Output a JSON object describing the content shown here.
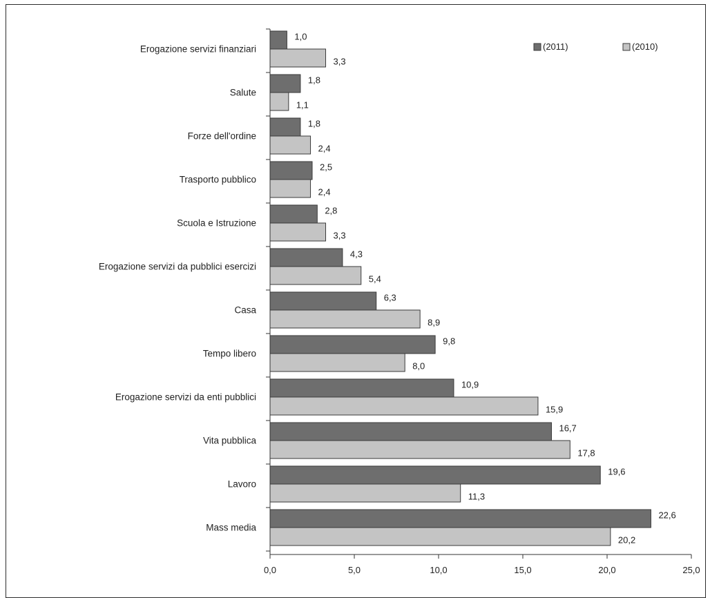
{
  "chart_data": {
    "type": "bar",
    "orientation": "horizontal",
    "categories": [
      "Erogazione servizi finanziari",
      "Salute",
      "Forze dell'ordine",
      "Trasporto pubblico",
      "Scuola e Istruzione",
      "Erogazione servizi da pubblici esercizi",
      "Casa",
      "Tempo libero",
      "Erogazione servizi da enti pubblici",
      "Vita pubblica",
      "Lavoro",
      "Mass media"
    ],
    "series": [
      {
        "name": "(2011)",
        "color": "#6e6e6e",
        "values": [
          1.0,
          1.8,
          1.8,
          2.5,
          2.8,
          4.3,
          6.3,
          9.8,
          10.9,
          16.7,
          19.6,
          22.6
        ],
        "labels": [
          "1,0",
          "1,8",
          "1,8",
          "2,5",
          "2,8",
          "4,3",
          "6,3",
          "9,8",
          "10,9",
          "16,7",
          "19,6",
          "22,6"
        ]
      },
      {
        "name": "(2010)",
        "color": "#c4c4c4",
        "values": [
          3.3,
          1.1,
          2.4,
          2.4,
          3.3,
          5.4,
          8.9,
          8.0,
          15.9,
          17.8,
          11.3,
          20.2
        ],
        "labels": [
          "3,3",
          "1,1",
          "2,4",
          "2,4",
          "3,3",
          "5,4",
          "8,9",
          "8,0",
          "15,9",
          "17,8",
          "11,3",
          "20,2"
        ]
      }
    ],
    "xlim": [
      0,
      25
    ],
    "xticks": [
      0,
      5,
      10,
      15,
      20,
      25
    ],
    "xtick_labels": [
      "0,0",
      "5,0",
      "10,0",
      "15,0",
      "20,0",
      "25,0"
    ],
    "grid": false,
    "legend_position": "top-right"
  }
}
